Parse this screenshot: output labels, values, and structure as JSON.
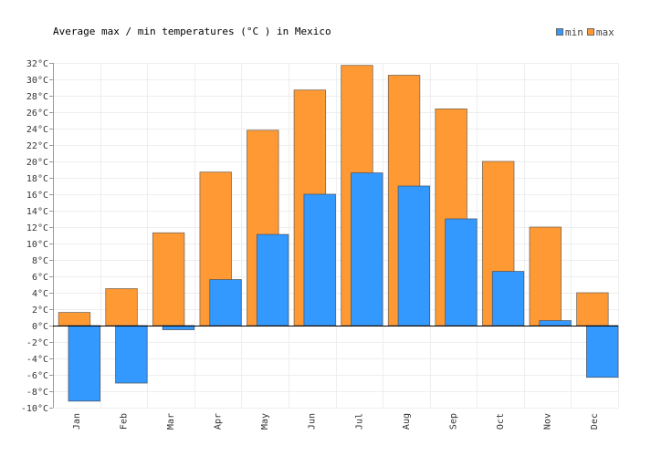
{
  "chart_data": {
    "type": "bar",
    "title": "Average max / min temperatures (°C ) in Mexico",
    "categories": [
      "Jan",
      "Feb",
      "Mar",
      "Apr",
      "May",
      "Jun",
      "Jul",
      "Aug",
      "Sep",
      "Oct",
      "Nov",
      "Dec"
    ],
    "series": [
      {
        "name": "max",
        "color": "#ff9933",
        "values": [
          1.6,
          4.5,
          11.3,
          18.7,
          23.8,
          28.7,
          31.7,
          30.5,
          26.4,
          20.0,
          12.0,
          4.0
        ]
      },
      {
        "name": "min",
        "color": "#3399ff",
        "values": [
          -9.2,
          -7.0,
          -0.5,
          5.6,
          11.1,
          16.0,
          18.6,
          17.0,
          13.0,
          6.6,
          0.6,
          -6.3
        ]
      }
    ],
    "ylim": [
      -10,
      32
    ],
    "yticks": [
      -10,
      -8,
      -6,
      -4,
      -2,
      0,
      2,
      4,
      6,
      8,
      10,
      12,
      14,
      16,
      18,
      20,
      22,
      24,
      26,
      28,
      30,
      32
    ],
    "y_unit": "°C",
    "grid": true,
    "legend_position": "top-right"
  }
}
